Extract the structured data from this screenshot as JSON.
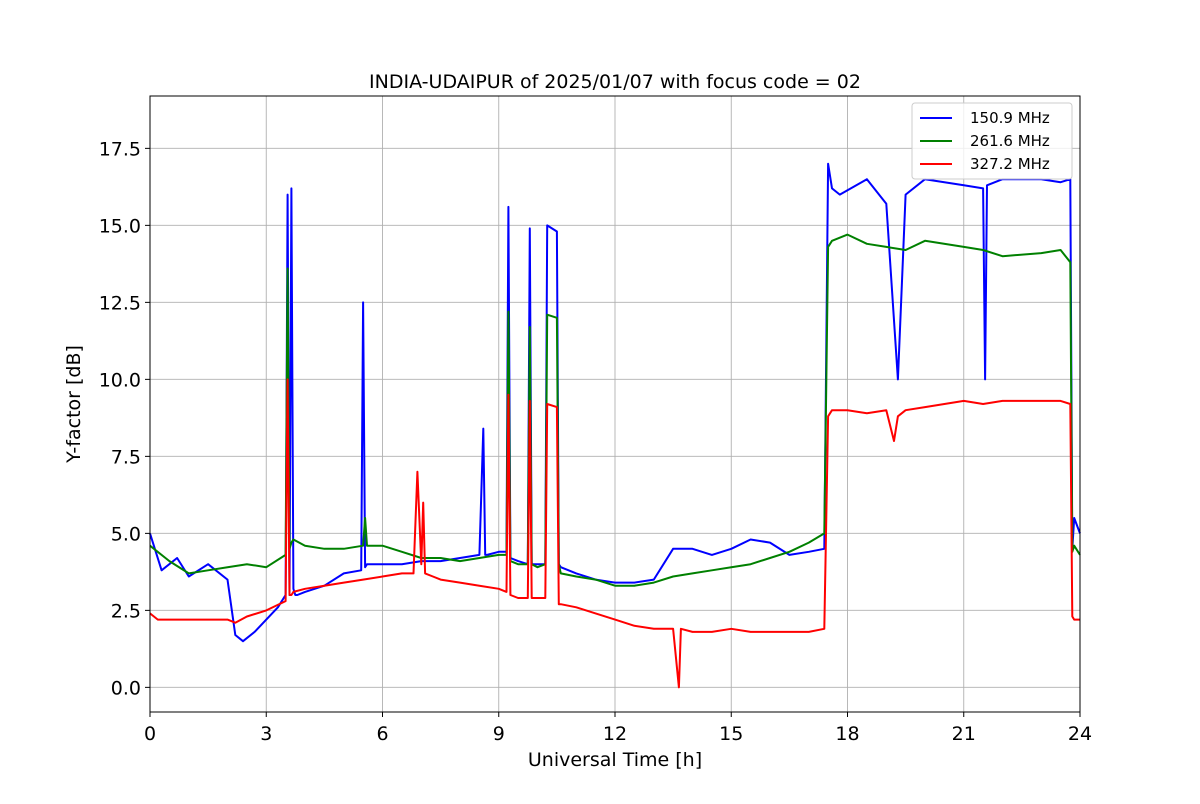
{
  "chart_data": {
    "type": "line",
    "title": "INDIA-UDAIPUR of 2025/01/07 with focus code = 02",
    "xlabel": "Universal Time [h]",
    "ylabel": "Y-factor [dB]",
    "xlim": [
      0,
      24
    ],
    "ylim": [
      -0.8,
      19.2
    ],
    "xticks": [
      0,
      3,
      6,
      9,
      12,
      15,
      18,
      21,
      24
    ],
    "xtick_labels": [
      "0",
      "3",
      "6",
      "9",
      "12",
      "15",
      "18",
      "21",
      "24"
    ],
    "yticks": [
      0,
      2.5,
      5,
      7.5,
      10,
      12.5,
      15,
      17.5
    ],
    "ytick_labels": [
      "0.0",
      "2.5",
      "5.0",
      "7.5",
      "10.0",
      "12.5",
      "15.0",
      "17.5"
    ],
    "grid": true,
    "legend_position": "top-right",
    "series": [
      {
        "name": "150.9 MHz",
        "color": "#0000ff",
        "x": [
          0.0,
          0.3,
          0.7,
          1.0,
          1.5,
          2.0,
          2.2,
          2.4,
          2.7,
          3.0,
          3.3,
          3.5,
          3.55,
          3.6,
          3.65,
          3.7,
          3.75,
          3.8,
          4.0,
          4.5,
          5.0,
          5.45,
          5.5,
          5.55,
          5.6,
          6.0,
          6.5,
          7.0,
          7.5,
          8.0,
          8.5,
          8.6,
          8.65,
          8.7,
          9.0,
          9.2,
          9.25,
          9.3,
          9.5,
          9.75,
          9.8,
          9.85,
          10.0,
          10.2,
          10.25,
          10.5,
          10.55,
          10.6,
          11.0,
          11.5,
          12.0,
          12.5,
          13.0,
          13.5,
          14.0,
          14.5,
          15.0,
          15.5,
          16.0,
          16.5,
          17.0,
          17.4,
          17.5,
          17.6,
          17.8,
          18.5,
          19.0,
          19.3,
          19.5,
          20.0,
          21.0,
          21.5,
          21.55,
          21.6,
          22.0,
          23.0,
          23.5,
          23.75,
          23.8,
          23.85,
          24.0
        ],
        "y": [
          5.0,
          3.8,
          4.2,
          3.6,
          4.0,
          3.5,
          1.7,
          1.5,
          1.8,
          2.2,
          2.6,
          3.0,
          16.0,
          3.0,
          16.2,
          3.2,
          3.0,
          3.0,
          3.1,
          3.3,
          3.7,
          3.8,
          12.5,
          3.9,
          4.0,
          4.0,
          4.0,
          4.1,
          4.1,
          4.2,
          4.3,
          8.4,
          4.3,
          4.3,
          4.4,
          4.4,
          15.6,
          4.2,
          4.1,
          4.0,
          14.9,
          4.0,
          4.0,
          4.0,
          15.0,
          14.8,
          4.0,
          3.9,
          3.7,
          3.5,
          3.4,
          3.4,
          3.5,
          4.5,
          4.5,
          4.3,
          4.5,
          4.8,
          4.7,
          4.3,
          4.4,
          4.5,
          17.0,
          16.2,
          16.0,
          16.5,
          15.7,
          10.0,
          16.0,
          16.5,
          16.3,
          16.2,
          10.0,
          16.3,
          16.5,
          16.5,
          16.4,
          16.5,
          4.5,
          5.5,
          5.0
        ]
      },
      {
        "name": "261.6 MHz",
        "color": "#008000",
        "x": [
          0.0,
          0.5,
          1.0,
          1.5,
          2.0,
          2.5,
          3.0,
          3.5,
          3.55,
          3.6,
          3.65,
          3.7,
          4.0,
          4.5,
          5.0,
          5.5,
          5.55,
          5.6,
          6.0,
          6.5,
          7.0,
          7.5,
          8.0,
          8.5,
          9.0,
          9.2,
          9.25,
          9.3,
          9.5,
          9.75,
          9.8,
          9.85,
          10.0,
          10.2,
          10.25,
          10.5,
          10.55,
          10.6,
          11.0,
          11.5,
          12.0,
          12.5,
          13.0,
          13.5,
          14.0,
          14.5,
          15.0,
          15.5,
          16.0,
          16.5,
          17.0,
          17.4,
          17.5,
          17.6,
          18.0,
          18.5,
          19.0,
          19.5,
          20.0,
          21.0,
          21.5,
          22.0,
          23.0,
          23.5,
          23.75,
          23.8,
          23.85,
          24.0
        ],
        "y": [
          4.6,
          4.1,
          3.7,
          3.8,
          3.9,
          4.0,
          3.9,
          4.3,
          13.6,
          4.5,
          4.7,
          4.8,
          4.6,
          4.5,
          4.5,
          4.6,
          5.5,
          4.6,
          4.6,
          4.4,
          4.2,
          4.2,
          4.1,
          4.2,
          4.3,
          4.3,
          12.2,
          4.1,
          4.0,
          4.0,
          11.7,
          4.0,
          3.9,
          4.0,
          12.1,
          12.0,
          4.0,
          3.7,
          3.6,
          3.5,
          3.3,
          3.3,
          3.4,
          3.6,
          3.7,
          3.8,
          3.9,
          4.0,
          4.2,
          4.4,
          4.7,
          5.0,
          14.3,
          14.5,
          14.7,
          14.4,
          14.3,
          14.2,
          14.5,
          14.3,
          14.2,
          14.0,
          14.1,
          14.2,
          13.8,
          4.4,
          4.6,
          4.3
        ]
      },
      {
        "name": "327.2 MHz",
        "color": "#ff0000",
        "x": [
          0.0,
          0.2,
          0.5,
          1.0,
          1.5,
          2.0,
          2.2,
          2.5,
          3.0,
          3.5,
          3.55,
          3.6,
          3.65,
          3.7,
          4.0,
          4.5,
          5.0,
          5.5,
          6.0,
          6.5,
          6.8,
          6.9,
          7.0,
          7.05,
          7.1,
          7.3,
          7.5,
          8.0,
          8.5,
          9.0,
          9.2,
          9.25,
          9.3,
          9.5,
          9.75,
          9.8,
          9.85,
          10.0,
          10.2,
          10.25,
          10.5,
          10.55,
          10.6,
          11.0,
          11.5,
          12.0,
          12.5,
          13.0,
          13.5,
          13.65,
          13.7,
          14.0,
          14.5,
          15.0,
          15.5,
          16.0,
          16.5,
          17.0,
          17.4,
          17.5,
          17.6,
          18.0,
          18.5,
          19.0,
          19.2,
          19.3,
          19.5,
          20.0,
          21.0,
          21.5,
          22.0,
          23.0,
          23.5,
          23.75,
          23.8,
          23.85,
          24.0
        ],
        "y": [
          2.4,
          2.2,
          2.2,
          2.2,
          2.2,
          2.2,
          2.1,
          2.3,
          2.5,
          2.8,
          10.0,
          3.0,
          3.0,
          3.1,
          3.2,
          3.3,
          3.4,
          3.5,
          3.6,
          3.7,
          3.7,
          7.0,
          4.0,
          6.0,
          3.7,
          3.6,
          3.5,
          3.4,
          3.3,
          3.2,
          3.1,
          9.5,
          3.0,
          2.9,
          2.9,
          9.3,
          2.9,
          2.9,
          2.9,
          9.2,
          9.1,
          2.7,
          2.7,
          2.6,
          2.4,
          2.2,
          2.0,
          1.9,
          1.9,
          0.0,
          1.9,
          1.8,
          1.8,
          1.9,
          1.8,
          1.8,
          1.8,
          1.8,
          1.9,
          8.8,
          9.0,
          9.0,
          8.9,
          9.0,
          8.0,
          8.8,
          9.0,
          9.1,
          9.3,
          9.2,
          9.3,
          9.3,
          9.3,
          9.2,
          2.3,
          2.2,
          2.2
        ]
      }
    ]
  }
}
